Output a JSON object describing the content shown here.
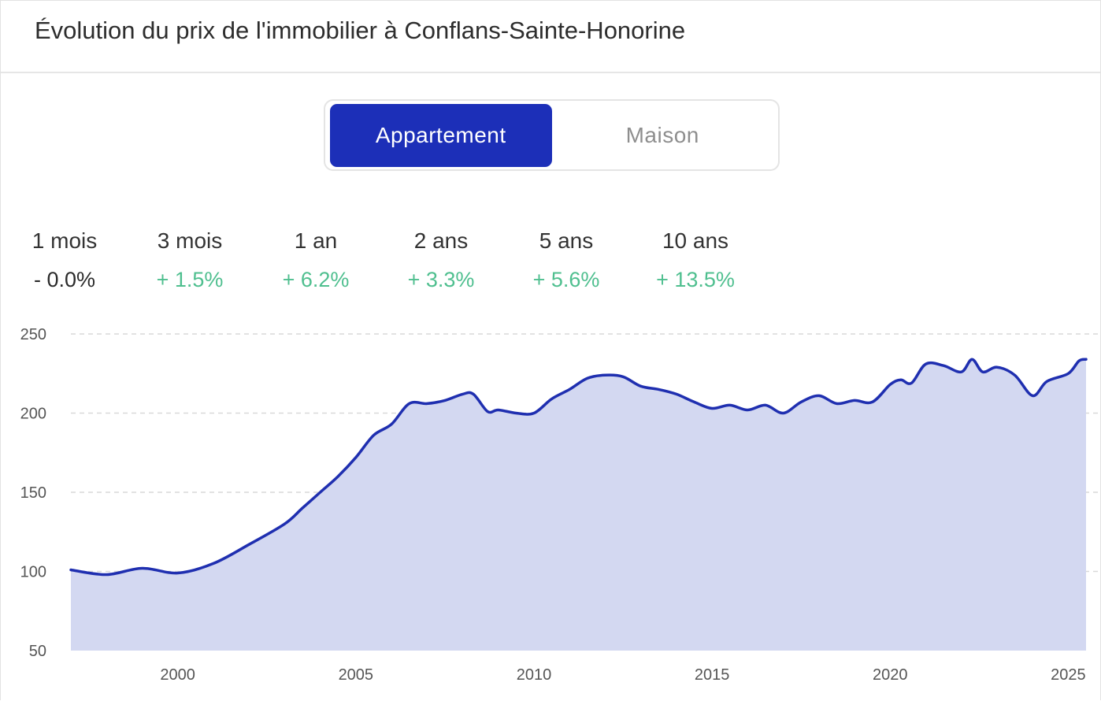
{
  "title": "Évolution du prix de l'immobilier à Conflans-Sainte-Honorine",
  "tabs": [
    {
      "label": "Appartement",
      "active": true
    },
    {
      "label": "Maison",
      "active": false
    }
  ],
  "stats": [
    {
      "period": "1 mois",
      "change": "- 0.0%",
      "trend": "neutral"
    },
    {
      "period": "3 mois",
      "change": "+ 1.5%",
      "trend": "positive"
    },
    {
      "period": "1 an",
      "change": "+ 6.2%",
      "trend": "positive"
    },
    {
      "period": "2 ans",
      "change": "+ 3.3%",
      "trend": "positive"
    },
    {
      "period": "5 ans",
      "change": "+ 5.6%",
      "trend": "positive"
    },
    {
      "period": "10 ans",
      "change": "+ 13.5%",
      "trend": "positive"
    }
  ],
  "colors": {
    "accent": "#1c2fb8",
    "line": "#1f2fb0",
    "area_fill": "#d3d8f1",
    "positive": "#4fbf8f",
    "grid": "#d9d9d9"
  },
  "chart_data": {
    "type": "area",
    "title": "",
    "xlabel": "",
    "ylabel": "",
    "xlim": [
      1997,
      2025.5
    ],
    "ylim": [
      50,
      250
    ],
    "y_ticks": [
      250,
      200,
      150,
      100,
      50
    ],
    "x_ticks": [
      2000,
      2005,
      2010,
      2015,
      2020,
      2025
    ],
    "grid": "horizontal dashed",
    "legend": "none",
    "series": [
      {
        "x": [
          1997,
          1998,
          1999,
          2000,
          2001,
          2002,
          2003,
          2003.5,
          2004,
          2004.5,
          2005,
          2005.5,
          2006,
          2006.5,
          2007,
          2007.5,
          2008,
          2008.3,
          2008.7,
          2009,
          2009.5,
          2010,
          2010.5,
          2011,
          2011.5,
          2012,
          2012.5,
          2013,
          2013.5,
          2014,
          2014.5,
          2015,
          2015.5,
          2016,
          2016.5,
          2017,
          2017.5,
          2018,
          2018.5,
          2019,
          2019.5,
          2020,
          2020.3,
          2020.6,
          2021,
          2021.5,
          2022,
          2022.3,
          2022.6,
          2023,
          2023.5,
          2024,
          2024.4,
          2025,
          2025.3,
          2025.5
        ],
        "y": [
          101,
          98,
          102,
          99,
          105,
          117,
          130,
          140,
          150,
          160,
          172,
          186,
          193,
          206,
          206,
          208,
          212,
          212,
          201,
          202,
          200,
          200,
          209,
          215,
          222,
          224,
          223,
          217,
          215,
          212,
          207,
          203,
          205,
          202,
          205,
          200,
          207,
          211,
          206,
          208,
          207,
          218,
          221,
          219,
          231,
          230,
          226,
          234,
          226,
          229,
          224,
          211,
          220,
          225,
          233,
          234
        ]
      }
    ]
  }
}
